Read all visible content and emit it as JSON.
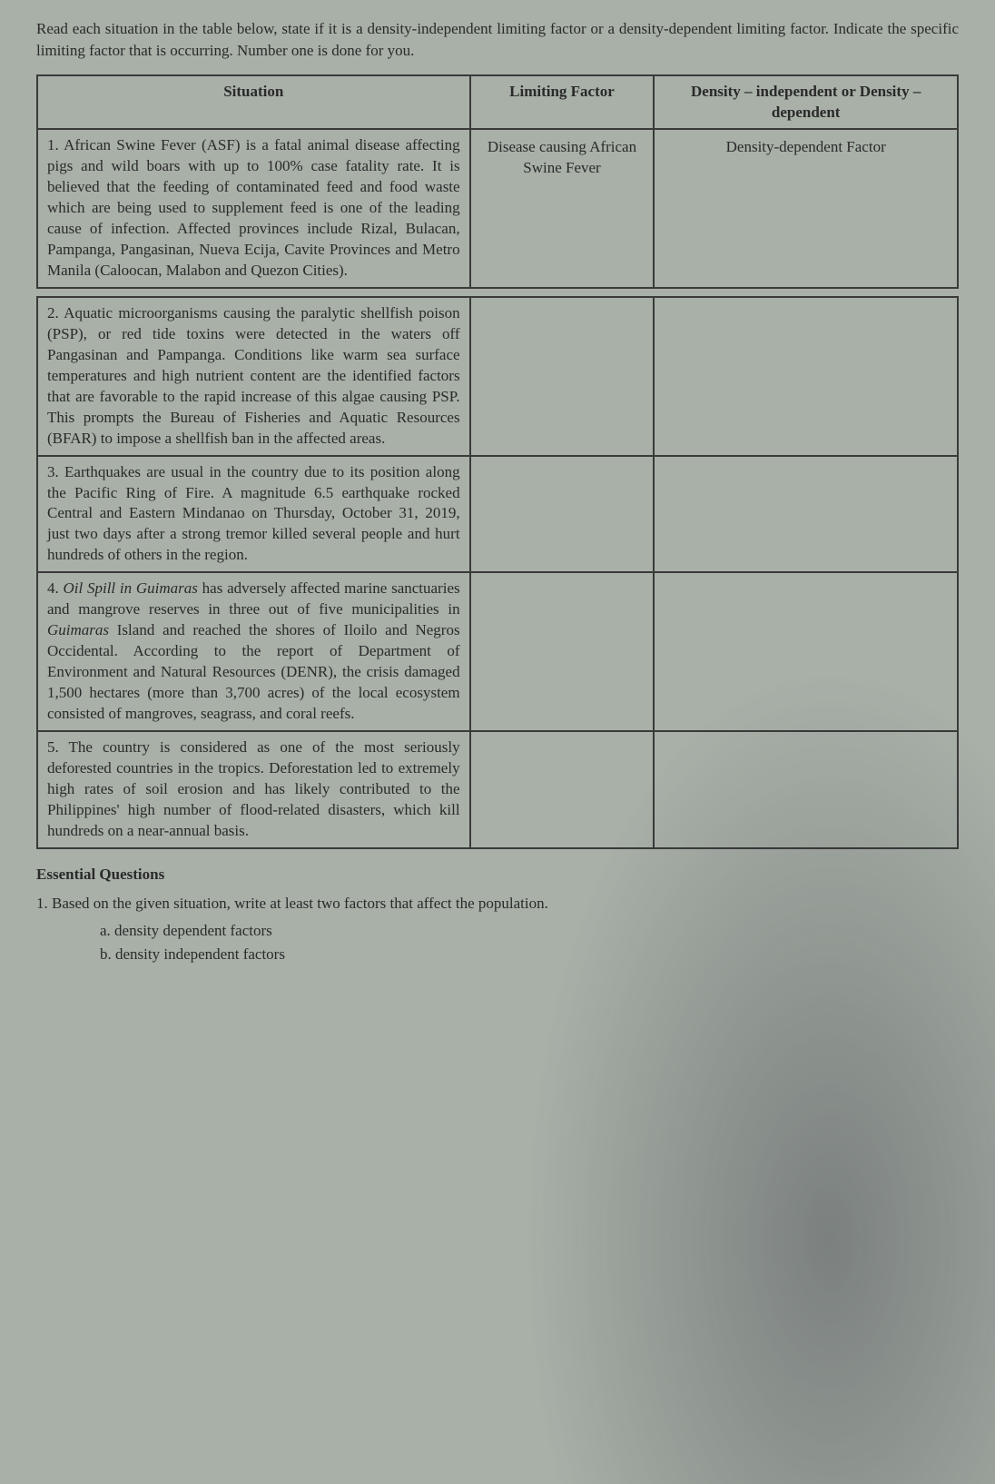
{
  "instructions": "Read each situation in the table below, state if it is a density-independent limiting factor or a density-dependent limiting factor. Indicate the specific limiting factor that is occurring. Number one is done for you.",
  "headers": {
    "situation": "Situation",
    "factor": "Limiting Factor",
    "density": "Density – independent or Density – dependent"
  },
  "rows": [
    {
      "situation": "1. African Swine Fever (ASF) is a fatal animal disease affecting pigs and wild boars with up to 100% case fatality rate. It is believed that the feeding of contaminated feed and food waste which are being used to supplement feed is one of the leading cause of infection. Affected provinces include Rizal, Bulacan, Pampanga, Pangasinan, Nueva Ecija, Cavite Provinces and Metro Manila (Caloocan, Malabon and Quezon Cities).",
      "factor": "Disease causing African Swine Fever",
      "density": "Density-dependent Factor"
    },
    {
      "situation": "2. Aquatic microorganisms causing the paralytic shellfish poison (PSP), or red tide toxins were detected in the waters off Pangasinan and Pampanga. Conditions like warm sea surface temperatures and high nutrient content are the identified factors that are favorable to the rapid increase of this algae causing PSP. This prompts the Bureau of Fisheries and Aquatic Resources (BFAR) to impose a shellfish ban in the affected areas.",
      "factor": "",
      "density": ""
    },
    {
      "situation": "3. Earthquakes are usual in the country due to its position along the Pacific Ring of Fire. A magnitude 6.5 earthquake rocked Central and Eastern Mindanao on Thursday, October 31, 2019, just two days after a strong tremor killed several people and hurt hundreds of others in the region.",
      "factor": "",
      "density": ""
    },
    {
      "situation_html": "4. <span class='italic'>Oil Spill in Guimaras</span> has adversely affected marine sanctuaries and mangrove reserves in three out of five municipalities in <span class='italic'>Guimaras</span> Island and reached the shores of Iloilo and Negros Occidental. According to the report of Department of Environment and Natural Resources (DENR), the crisis damaged 1,500 hectares (more than 3,700 acres) of the local ecosystem consisted of mangroves, seagrass, and coral reefs.",
      "factor": "",
      "density": ""
    },
    {
      "situation": "5. The country is considered as one of the most seriously deforested countries in the tropics. Deforestation led to extremely high rates of soil erosion and has likely contributed to the Philippines' high number of flood-related disasters, which kill hundreds on a near-annual basis.",
      "factor": "",
      "density": ""
    }
  ],
  "essential": {
    "heading": "Essential Questions",
    "q1": "1. Based on the given situation, write at least two factors that affect the population.",
    "a": "a. density dependent factors",
    "b": "b. density independent factors"
  }
}
